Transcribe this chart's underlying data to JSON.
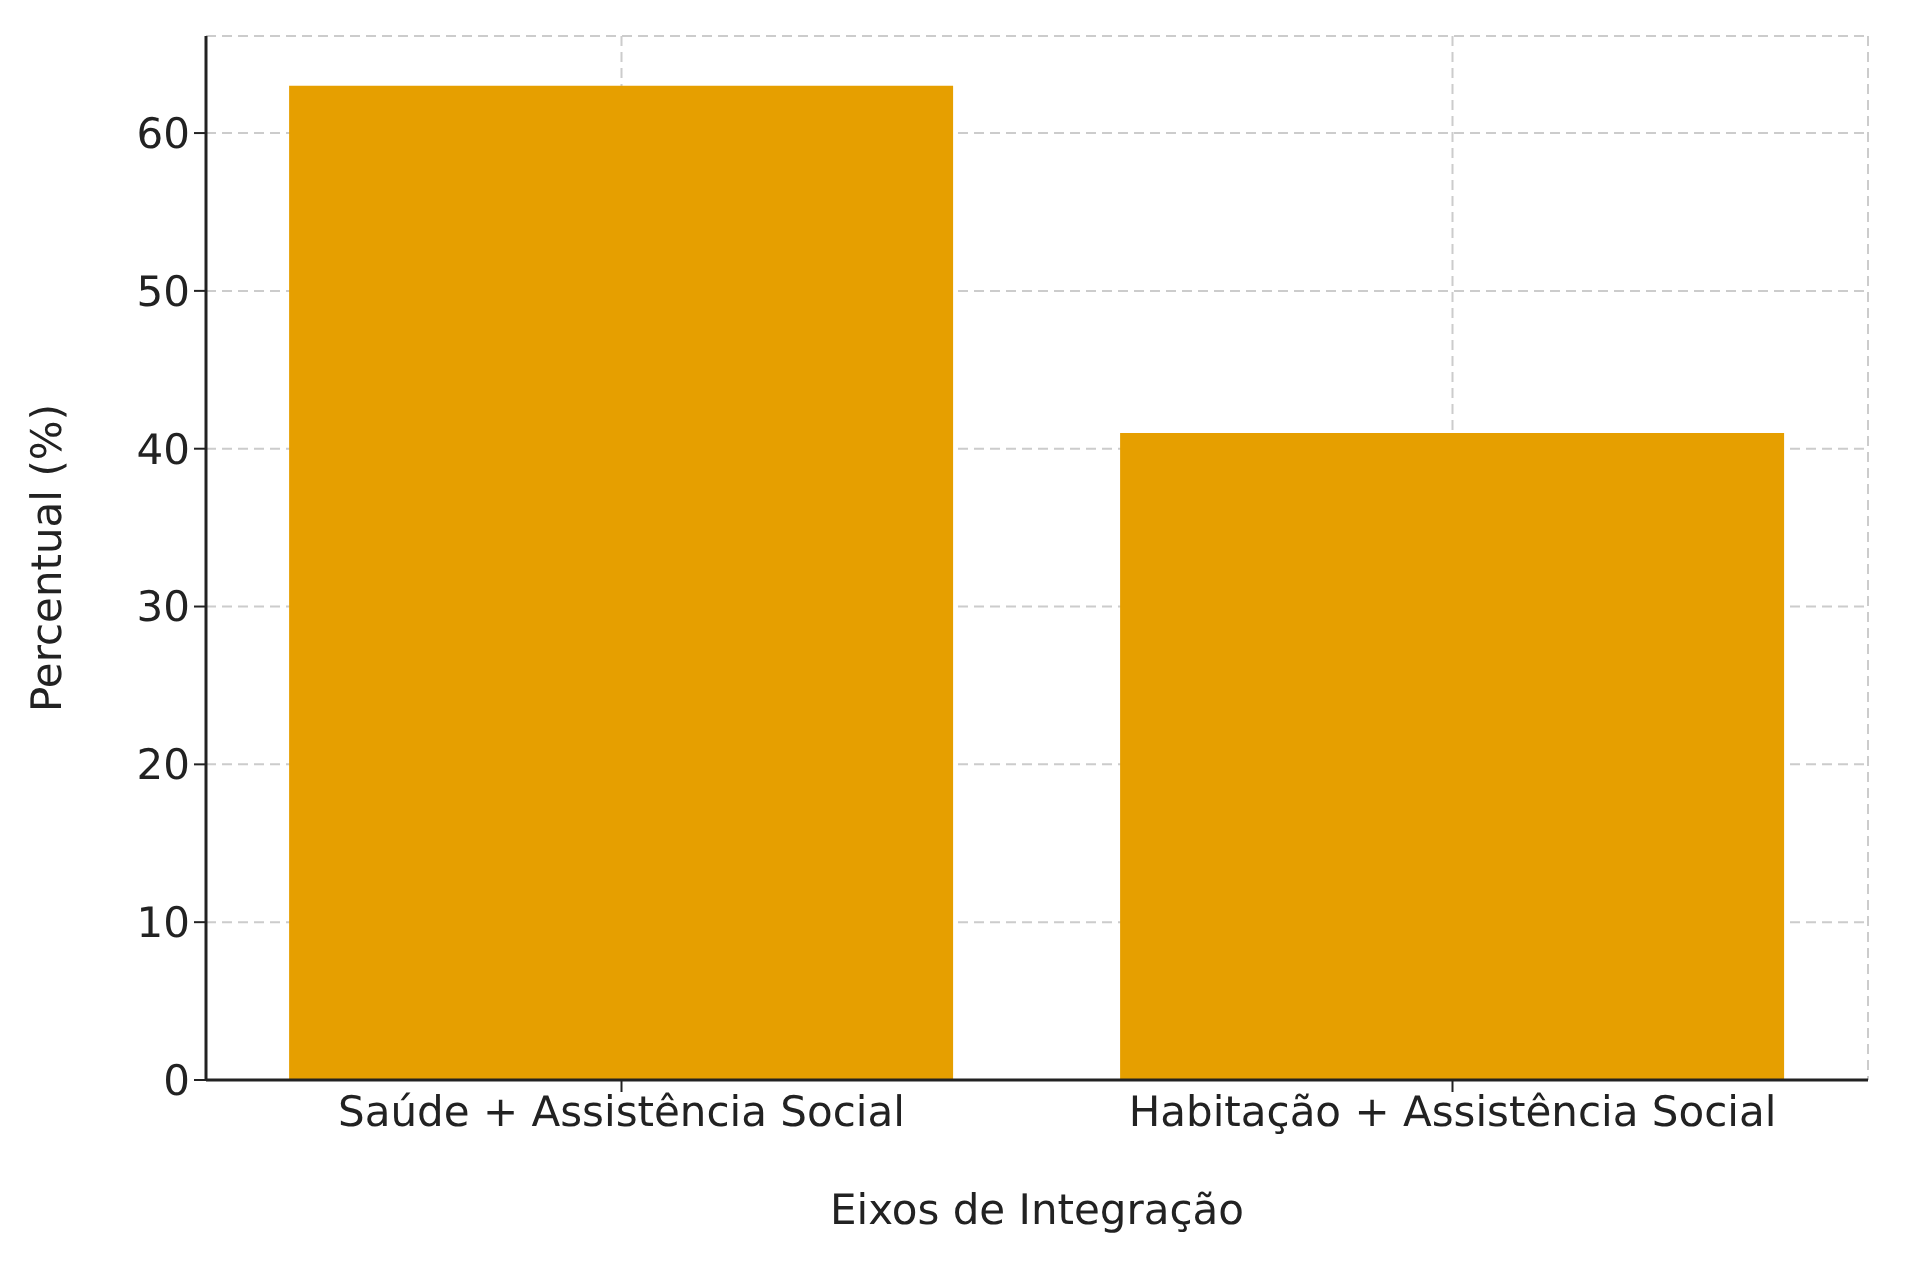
{
  "chart_data": {
    "type": "bar",
    "xlabel": "Eixos de Integração",
    "ylabel": "Percentual (%)",
    "categories": [
      "Saúde + Assistência Social",
      "Habitação + Assistência Social"
    ],
    "values": [
      63,
      41
    ],
    "color": "#e69f00",
    "ylim": [
      0,
      66.15
    ],
    "yticks": [
      0,
      10,
      20,
      30,
      40,
      50,
      60
    ],
    "grid": true
  }
}
